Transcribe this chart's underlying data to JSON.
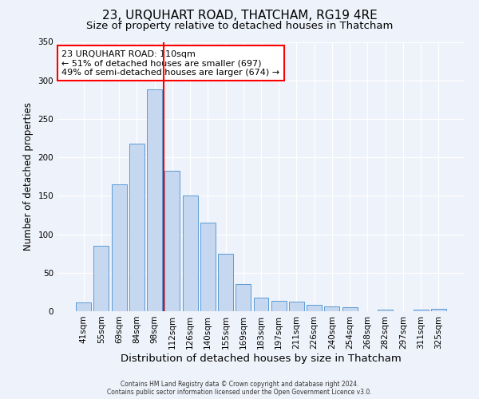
{
  "title": "23, URQUHART ROAD, THATCHAM, RG19 4RE",
  "subtitle": "Size of property relative to detached houses in Thatcham",
  "xlabel": "Distribution of detached houses by size in Thatcham",
  "ylabel": "Number of detached properties",
  "bar_labels": [
    "41sqm",
    "55sqm",
    "69sqm",
    "84sqm",
    "98sqm",
    "112sqm",
    "126sqm",
    "140sqm",
    "155sqm",
    "169sqm",
    "183sqm",
    "197sqm",
    "211sqm",
    "226sqm",
    "240sqm",
    "254sqm",
    "268sqm",
    "282sqm",
    "297sqm",
    "311sqm",
    "325sqm"
  ],
  "bar_values": [
    11,
    85,
    165,
    218,
    288,
    183,
    150,
    115,
    75,
    35,
    18,
    13,
    12,
    8,
    6,
    5,
    0,
    2,
    0,
    2,
    3
  ],
  "bar_color": "#c5d8f0",
  "bar_edge_color": "#5b9bd5",
  "reference_line_x": 4.5,
  "reference_line_label": "23 URQUHART ROAD: 110sqm",
  "annotation_line1": "← 51% of detached houses are smaller (697)",
  "annotation_line2": "49% of semi-detached houses are larger (674) →",
  "ylim": [
    0,
    350
  ],
  "footer_line1": "Contains HM Land Registry data © Crown copyright and database right 2024.",
  "footer_line2": "Contains public sector information licensed under the Open Government Licence v3.0.",
  "title_fontsize": 11,
  "subtitle_fontsize": 9.5,
  "ylabel_fontsize": 8.5,
  "xlabel_fontsize": 9.5,
  "annotation_fontsize": 8,
  "background_color": "#eef2fa"
}
